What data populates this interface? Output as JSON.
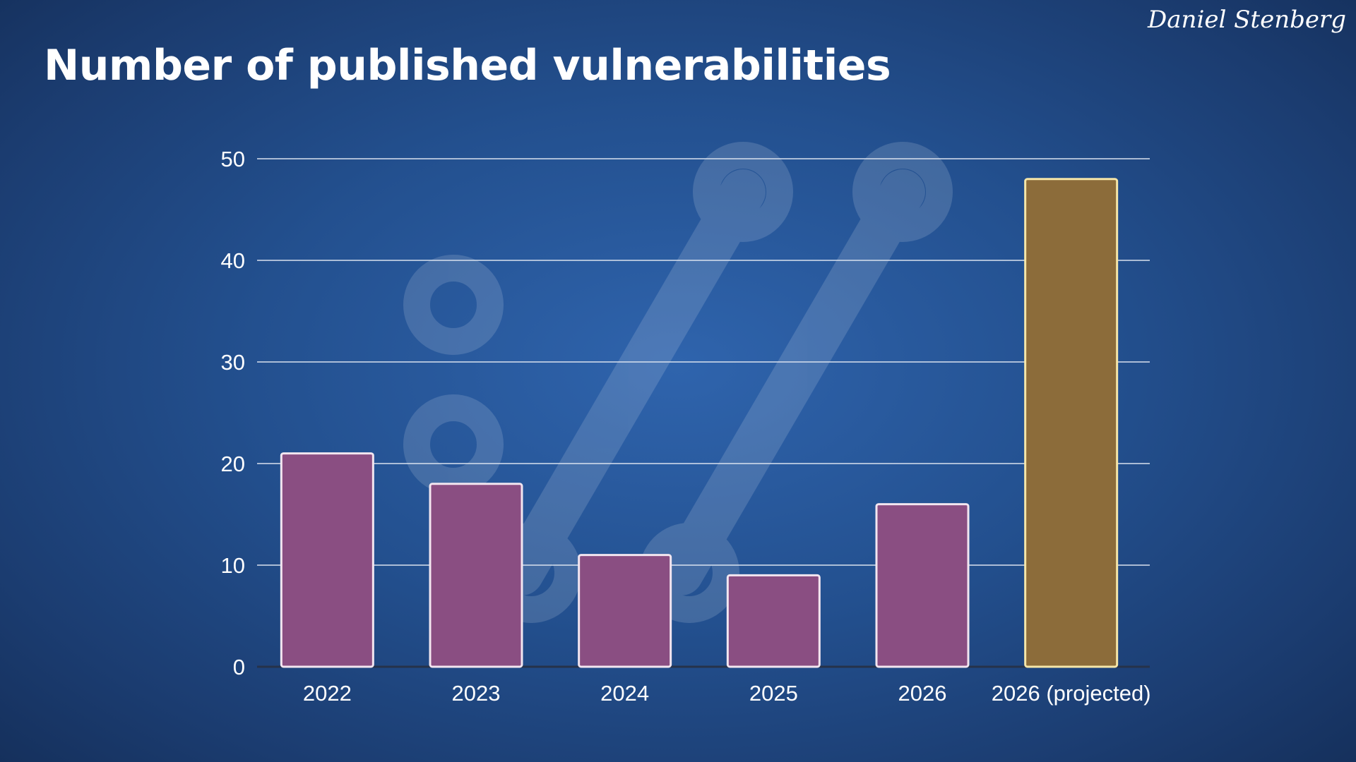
{
  "slide": {
    "title": "Number of published vulnerabilities",
    "author": "Daniel Stenberg",
    "logo_icon": "curl-logo-watermark"
  },
  "colors": {
    "bar": "#8a4e82",
    "bar_highlight": "#8c6c3a",
    "bar_border": "#f3e6f0",
    "bar_highlight_border": "#f6e6a8",
    "gridline": "#d9e1ee",
    "axis_text": "#ffffff"
  },
  "chart_data": {
    "type": "bar",
    "categories": [
      "2022",
      "2023",
      "2024",
      "2025",
      "2026",
      "2026 (projected)"
    ],
    "values": [
      21,
      18,
      11,
      9,
      16,
      48
    ],
    "highlight_index": 5,
    "title": "",
    "xlabel": "",
    "ylabel": "",
    "ylim": [
      0,
      50
    ],
    "yticks": [
      0,
      10,
      20,
      30,
      40,
      50
    ],
    "grid": true,
    "legend": "none"
  }
}
